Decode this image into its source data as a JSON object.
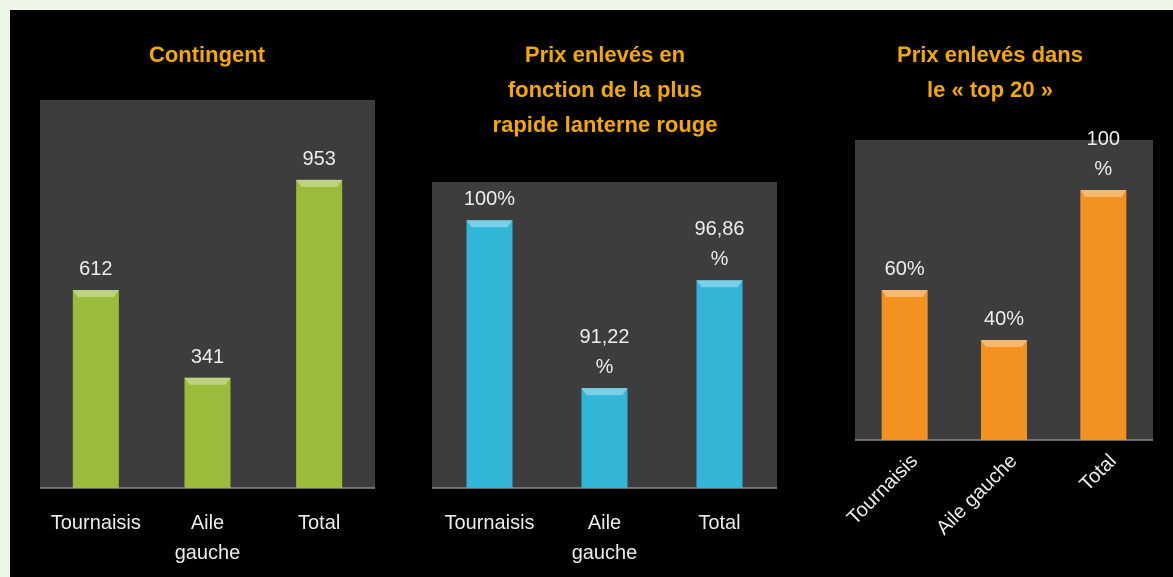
{
  "chart_data": [
    {
      "type": "bar",
      "title": [
        "Contingent"
      ],
      "categories": [
        "Tournaisis",
        "Aile gauche",
        "Total"
      ],
      "values": [
        612,
        341,
        953
      ],
      "value_labels": [
        "612",
        "341",
        "953"
      ],
      "color": "#9bbb3b",
      "ylim": [
        0,
        1200
      ]
    },
    {
      "type": "bar",
      "title": [
        "Prix enlevés en",
        "fonction de la plus",
        "rapide lanterne rouge"
      ],
      "categories": [
        "Tournaisis",
        "Aile gauche",
        "Total"
      ],
      "values": [
        100,
        91.22,
        96.86
      ],
      "value_labels": [
        "100%",
        "91,22 %",
        "96,86 %"
      ],
      "color": "#31b6d8",
      "ylim": [
        86,
        102
      ]
    },
    {
      "type": "bar",
      "title": [
        "Prix enlevés dans",
        "le « top 20 »"
      ],
      "categories": [
        "Tournaisis",
        "Aile gauche",
        "Total"
      ],
      "values": [
        60,
        40,
        100
      ],
      "value_labels": [
        "60%",
        "40%",
        "100 %"
      ],
      "color": "#f39121",
      "ylim": [
        0,
        120
      ],
      "label_rotation": -45
    }
  ]
}
